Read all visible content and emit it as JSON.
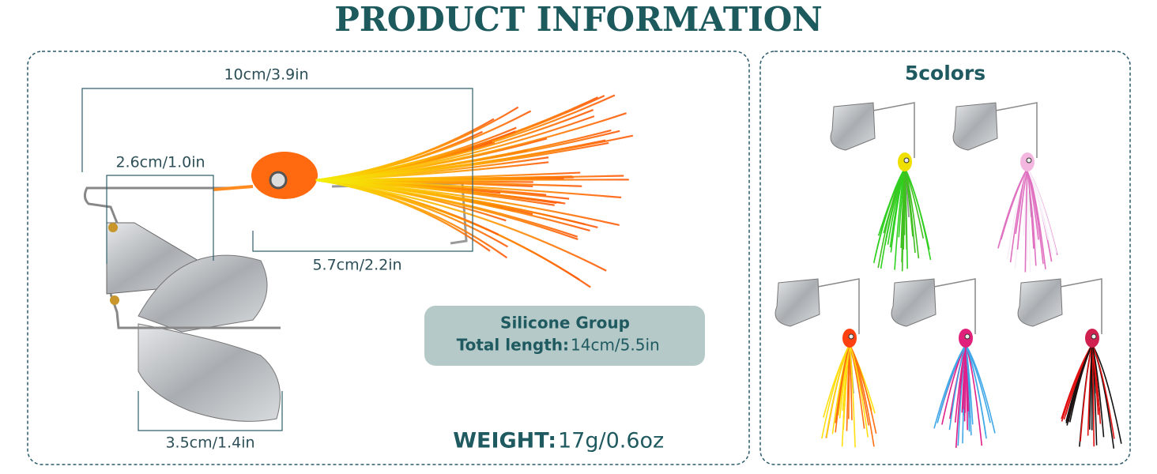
{
  "header": {
    "title": "PRODUCT INFORMATION"
  },
  "dimensions": {
    "overall_length": "10cm/3.9in",
    "arm_length": "2.6cm/1.0in",
    "skirt_length": "5.7cm/2.2in",
    "blade_length": "3.5cm/1.4in"
  },
  "info_box": {
    "line1": "Silicone Group",
    "total_length_label": "Total length:",
    "total_length_value": "14cm/5.5in"
  },
  "weight": {
    "label": "WEIGHT:",
    "value": "17g/0.6oz"
  },
  "colors_panel": {
    "title": "5colors"
  }
}
